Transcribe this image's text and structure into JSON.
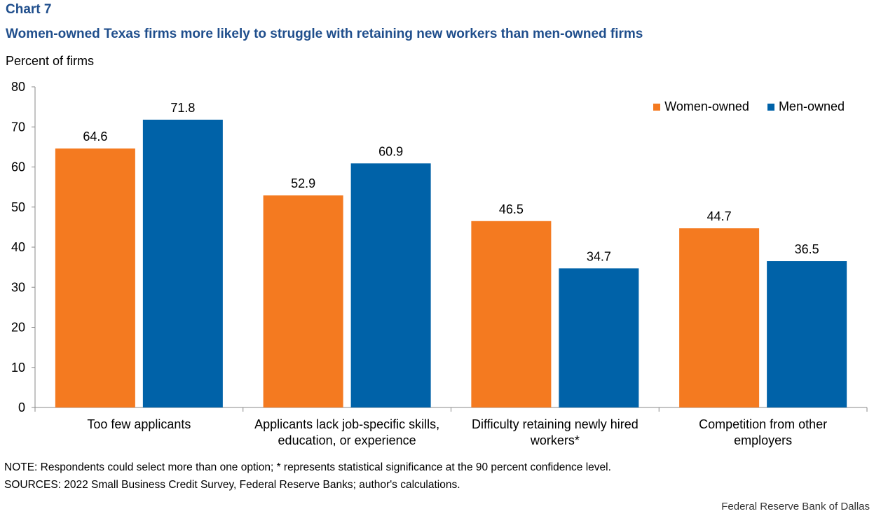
{
  "header": {
    "chart_number": "Chart 7",
    "title": "Women-owned Texas firms more likely to struggle with retaining new workers than men-owned firms",
    "y_unit": "Percent of firms"
  },
  "chart_data": {
    "type": "bar",
    "title": "Women-owned Texas firms more likely to struggle with retaining new workers than men-owned firms",
    "xlabel": "",
    "ylabel": "Percent of firms",
    "ylim": [
      0,
      80
    ],
    "yticks": [
      0,
      10,
      20,
      30,
      40,
      50,
      60,
      70,
      80
    ],
    "grid": false,
    "legend_position": "top-right",
    "categories": [
      [
        "Too few applicants"
      ],
      [
        "Applicants lack job-specific skills,",
        "education, or experience"
      ],
      [
        "Difficulty retaining newly hired",
        "workers*"
      ],
      [
        "Competition from other",
        "employers"
      ]
    ],
    "series": [
      {
        "name": "Women-owned",
        "color": "#F47A20",
        "values": [
          64.6,
          52.9,
          46.5,
          44.7
        ]
      },
      {
        "name": "Men-owned",
        "color": "#0062A8",
        "values": [
          71.8,
          60.9,
          34.7,
          36.5
        ]
      }
    ]
  },
  "footer": {
    "note": "NOTE: Respondents could select more than one option; * represents statistical significance at the 90 percent confidence level.",
    "sources": "SOURCES: 2022 Small Business Credit Survey, Federal Reserve Banks; author's calculations.",
    "credit": "Federal Reserve Bank of Dallas"
  }
}
